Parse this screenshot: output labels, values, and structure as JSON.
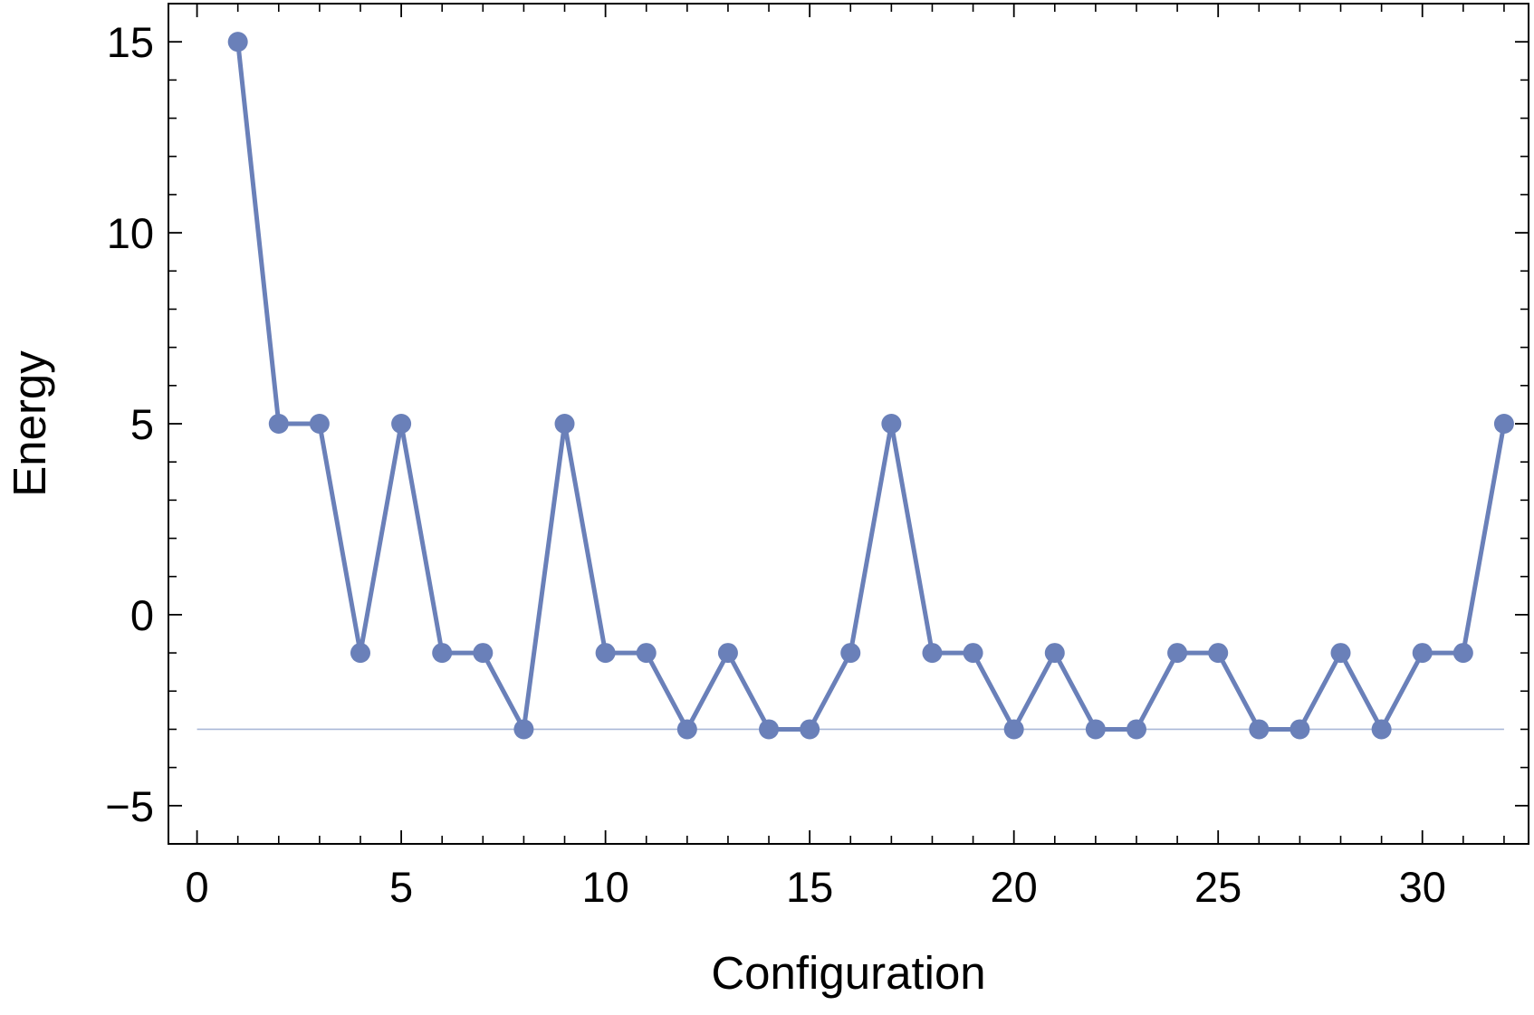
{
  "chart_data": {
    "type": "line",
    "title": "",
    "xlabel": "Configuration",
    "ylabel": "Energy",
    "xlim": [
      -0.7,
      32.6
    ],
    "ylim": [
      -6,
      16
    ],
    "x_ticks": [
      0,
      5,
      10,
      15,
      20,
      25,
      30
    ],
    "y_ticks": [
      -5,
      0,
      5,
      10,
      15
    ],
    "x_tick_labels": [
      "0",
      "5",
      "10",
      "15",
      "20",
      "25",
      "30"
    ],
    "y_tick_labels": [
      "−5",
      "0",
      "5",
      "10",
      "15"
    ],
    "grid": false,
    "legend": "none",
    "colors": {
      "series": "#6a80b9",
      "reference": "#aab8d8",
      "frame": "#000000"
    },
    "series": [
      {
        "x": [
          1,
          2,
          3,
          4,
          5,
          6,
          7,
          8,
          9,
          10,
          11,
          12,
          13,
          14,
          15,
          16,
          17,
          18,
          19,
          20,
          21,
          22,
          23,
          24,
          25,
          26,
          27,
          28,
          29,
          30,
          31,
          32
        ],
        "values": [
          15,
          5,
          5,
          -1,
          5,
          -1,
          -1,
          -3,
          5,
          -1,
          -1,
          -3,
          -1,
          -3,
          -3,
          -1,
          5,
          -1,
          -1,
          -3,
          -1,
          -3,
          -3,
          -1,
          -1,
          -3,
          -3,
          -1,
          -3,
          -1,
          -1,
          5
        ]
      }
    ],
    "reference_line": {
      "y": -3,
      "x_from": 0,
      "x_to": 32
    }
  }
}
